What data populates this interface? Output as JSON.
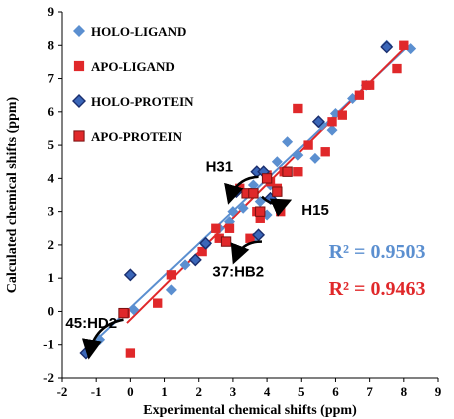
{
  "chart_data": {
    "type": "scatter",
    "xlabel": "Experimental chemical shifts (ppm)",
    "ylabel": "Calculated chemical shifts (ppm)",
    "xlim": [
      -2,
      9
    ],
    "ylim": [
      -2,
      9
    ],
    "xticks": [
      "-2",
      "-1",
      "0",
      "1",
      "2",
      "3",
      "4",
      "5",
      "6",
      "7",
      "8",
      "9"
    ],
    "yticks": [
      "-2",
      "-1",
      "0",
      "1",
      "2",
      "3",
      "4",
      "5",
      "6",
      "7",
      "8",
      "9"
    ],
    "grid": false,
    "legend_position": "top-left",
    "series": [
      {
        "name": "HOLO-LIGAND",
        "color": "#5b8fd0",
        "marker": "diamond",
        "points": [
          [
            -1.3,
            -1.25
          ],
          [
            -0.9,
            -0.85
          ],
          [
            0.1,
            0.05
          ],
          [
            1.2,
            0.65
          ],
          [
            1.6,
            1.4
          ],
          [
            2.2,
            2.0
          ],
          [
            2.6,
            2.5
          ],
          [
            3.0,
            3.0
          ],
          [
            3.3,
            3.1
          ],
          [
            3.6,
            2.2
          ],
          [
            3.8,
            3.3
          ],
          [
            4.1,
            3.8
          ],
          [
            4.3,
            4.5
          ],
          [
            4.6,
            5.1
          ],
          [
            4.9,
            4.7
          ],
          [
            5.4,
            4.6
          ],
          [
            5.6,
            5.6
          ],
          [
            5.9,
            5.45
          ],
          [
            6.0,
            5.95
          ],
          [
            6.5,
            6.4
          ],
          [
            6.9,
            6.8
          ],
          [
            7.5,
            8.0
          ],
          [
            8.2,
            7.9
          ],
          [
            4.0,
            2.9
          ],
          [
            3.6,
            3.8
          ],
          [
            2.9,
            2.7
          ]
        ]
      },
      {
        "name": "APO-LIGAND",
        "color": "#e0282a",
        "marker": "square",
        "points": [
          [
            -0.15,
            -0.05
          ],
          [
            0.0,
            -1.25
          ],
          [
            0.8,
            0.25
          ],
          [
            1.2,
            1.1
          ],
          [
            2.1,
            1.8
          ],
          [
            2.5,
            2.5
          ],
          [
            2.8,
            2.1
          ],
          [
            2.9,
            2.5
          ],
          [
            3.2,
            3.7
          ],
          [
            3.4,
            3.55
          ],
          [
            3.7,
            3.0
          ],
          [
            3.8,
            2.8
          ],
          [
            4.0,
            4.1
          ],
          [
            4.1,
            3.9
          ],
          [
            4.3,
            3.7
          ],
          [
            4.4,
            3.0
          ],
          [
            4.5,
            4.2
          ],
          [
            4.9,
            6.1
          ],
          [
            4.9,
            4.2
          ],
          [
            5.2,
            5.0
          ],
          [
            5.7,
            4.8
          ],
          [
            5.9,
            5.7
          ],
          [
            6.2,
            5.9
          ],
          [
            6.7,
            6.5
          ],
          [
            6.9,
            6.8
          ],
          [
            7.0,
            6.8
          ],
          [
            7.8,
            7.3
          ],
          [
            8.0,
            8.0
          ],
          [
            3.5,
            2.2
          ],
          [
            2.6,
            2.2
          ]
        ]
      },
      {
        "name": "HOLO-PROTEIN",
        "color": "#3a66b8",
        "marker": "diamond",
        "points": [
          [
            -1.3,
            -1.25
          ],
          [
            0.0,
            1.1
          ],
          [
            1.9,
            1.55
          ],
          [
            2.2,
            2.05
          ],
          [
            3.7,
            4.2
          ],
          [
            3.75,
            2.3
          ],
          [
            3.9,
            4.2
          ],
          [
            4.1,
            3.4
          ],
          [
            5.5,
            5.7
          ],
          [
            7.5,
            7.95
          ],
          [
            3.1,
            3.6
          ]
        ]
      },
      {
        "name": "APO-PROTEIN",
        "color": "#e0282a",
        "marker": "square",
        "points": [
          [
            -0.2,
            -0.05
          ],
          [
            2.8,
            2.1
          ],
          [
            3.4,
            3.55
          ],
          [
            3.6,
            3.55
          ],
          [
            3.8,
            3.0
          ],
          [
            4.0,
            4.0
          ],
          [
            4.3,
            3.6
          ],
          [
            4.6,
            4.2
          ]
        ]
      }
    ],
    "trendlines": [
      {
        "name": "HOLO",
        "color": "#5b8fd0",
        "from": [
          -1.3,
          -1.15
        ],
        "to": [
          8.1,
          7.95
        ]
      },
      {
        "name": "APO",
        "color": "#e0282a",
        "from": [
          -0.1,
          -0.35
        ],
        "to": [
          8.05,
          7.95
        ]
      }
    ],
    "annotations": [
      {
        "text": "H31",
        "x": 2.2,
        "y": 4.2,
        "arrow_from": [
          3.75,
          4.05
        ],
        "arrow_to": [
          2.9,
          3.35
        ]
      },
      {
        "text": "H15",
        "x": 5.0,
        "y": 2.9,
        "arrow_from": [
          3.85,
          3.45
        ],
        "arrow_to": [
          4.6,
          3.3
        ]
      },
      {
        "text": "37:HB2",
        "x": 2.4,
        "y": 1.05,
        "arrow_from": [
          3.85,
          2.1
        ],
        "arrow_to": [
          3.05,
          1.55
        ]
      },
      {
        "text": "45:HD2",
        "x": -1.9,
        "y": -0.5,
        "arrow_from": [
          -0.2,
          -0.25
        ],
        "arrow_to": [
          -1.2,
          -1.3
        ]
      }
    ],
    "r2_labels": [
      {
        "text": "R² = 0.9503",
        "color": "#5b8fd0",
        "x": 5.8,
        "y": 1.6
      },
      {
        "text": "R² = 0.9463",
        "color": "#e0282a",
        "x": 5.8,
        "y": 0.5
      }
    ]
  }
}
